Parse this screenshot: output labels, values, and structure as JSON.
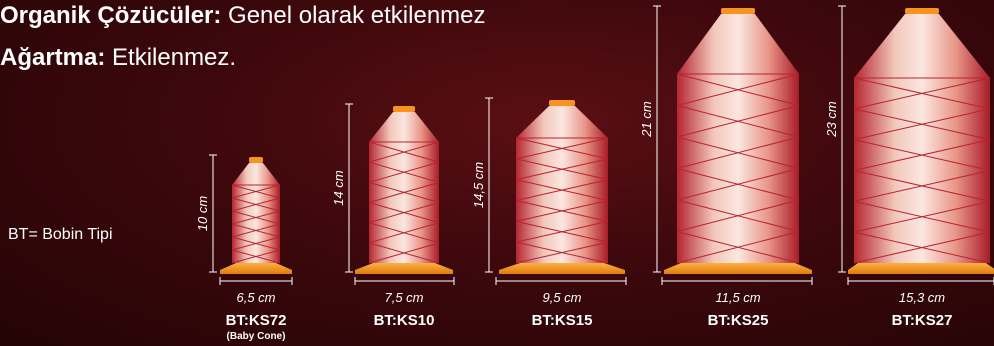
{
  "header": {
    "line1_bold": "Organik Çözücüler:",
    "line1_text": " Genel olarak etkilenmez",
    "line2_bold": "Ağartma:",
    "line2_text": " Etkilenmez."
  },
  "legend": "BT= Bobin Tipi",
  "spools": [
    {
      "height": "10 cm",
      "width": "6,5 cm",
      "code": "BT:KS72",
      "sub": "(Baby Cone)"
    },
    {
      "height": "14 cm",
      "width": "7,5 cm",
      "code": "BT:KS10"
    },
    {
      "height": "14,5 cm",
      "width": "9,5 cm",
      "code": "BT:KS15"
    },
    {
      "height": "21 cm",
      "width": "11,5 cm",
      "code": "BT:KS25"
    },
    {
      "height": "23 cm",
      "width": "15,3 cm",
      "code": "BT:KS27"
    }
  ],
  "colors": {
    "thread": "#e8a9a0",
    "base": "#f7941d",
    "background": "#3d080c"
  }
}
